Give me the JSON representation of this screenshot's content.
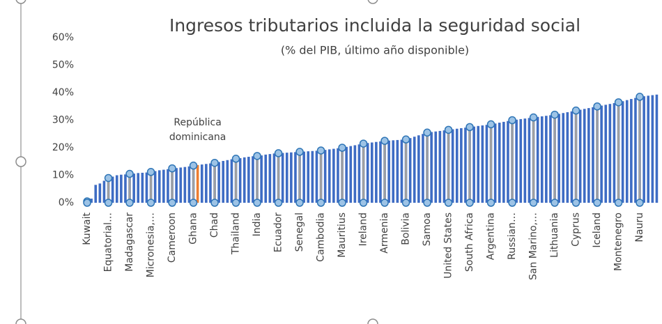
{
  "chart_data": {
    "type": "bar",
    "title": "Ingresos tributarios incluida la seguridad social",
    "subtitle": "(% del PIB, último año disponible)",
    "categories": [
      "Kuwait",
      null,
      null,
      null,
      null,
      "Equatorial…",
      null,
      null,
      null,
      null,
      "Madagascar",
      null,
      null,
      null,
      null,
      "Micronesia,…",
      null,
      null,
      null,
      null,
      "Cameroon",
      null,
      null,
      null,
      null,
      "Ghana",
      null,
      null,
      null,
      null,
      "Chad",
      null,
      null,
      null,
      null,
      "Thailand",
      null,
      null,
      null,
      null,
      "India",
      null,
      null,
      null,
      null,
      "Ecuador",
      null,
      null,
      null,
      null,
      "Senegal",
      null,
      null,
      null,
      null,
      "Cambodia",
      null,
      null,
      null,
      null,
      "Mauritius",
      null,
      null,
      null,
      null,
      "Ireland",
      null,
      null,
      null,
      null,
      "Armenia",
      null,
      null,
      null,
      null,
      "Bolivia",
      null,
      null,
      null,
      null,
      "Samoa",
      null,
      null,
      null,
      null,
      "United States",
      null,
      null,
      null,
      null,
      "South Africa",
      null,
      null,
      null,
      null,
      "Argentina",
      null,
      null,
      null,
      null,
      "Russian…",
      null,
      null,
      null,
      null,
      "San Marino,…",
      null,
      null,
      null,
      null,
      "Lithuania",
      null,
      null,
      null,
      null,
      "Cyprus",
      null,
      null,
      null,
      null,
      "Iceland",
      null,
      null,
      null,
      null,
      "Montenegro",
      null,
      null,
      null,
      null,
      "Nauru",
      null,
      null,
      null,
      null
    ],
    "values": [
      0.5,
      1.5,
      6.5,
      7,
      8,
      9,
      9.5,
      10,
      10.2,
      10.3,
      10.5,
      10.6,
      10.8,
      10.9,
      11,
      11.2,
      11.5,
      11.8,
      12,
      12.2,
      12.5,
      12.6,
      12.8,
      13,
      13.2,
      13.5,
      13.7,
      13.9,
      14.1,
      14.3,
      14.5,
      14.8,
      15.2,
      15.5,
      15.8,
      16,
      16.2,
      16.5,
      16.7,
      16.9,
      17,
      17.2,
      17.5,
      17.7,
      17.9,
      18,
      18.1,
      18.2,
      18.3,
      18.4,
      18.5,
      18.6,
      18.7,
      18.8,
      18.9,
      19,
      19.2,
      19.4,
      19.6,
      19.8,
      20,
      20.3,
      20.6,
      20.9,
      21.2,
      21.5,
      21.7,
      21.9,
      22.1,
      22.3,
      22.5,
      22.6,
      22.7,
      22.8,
      22.9,
      23,
      23.5,
      24,
      24.5,
      25,
      25.5,
      25.7,
      25.9,
      26.1,
      26.3,
      26.5,
      26.7,
      26.9,
      27.1,
      27.3,
      27.5,
      27.7,
      27.9,
      28.1,
      28.3,
      28.5,
      28.8,
      29.1,
      29.4,
      29.7,
      30,
      30.2,
      30.4,
      30.6,
      30.8,
      31,
      31.2,
      31.4,
      31.6,
      31.8,
      32,
      32.3,
      32.6,
      32.9,
      33.2,
      33.5,
      33.8,
      34.1,
      34.4,
      34.7,
      35,
      35.3,
      35.6,
      35.9,
      36.2,
      36.5,
      36.9,
      37.3,
      37.7,
      38.1,
      38.5,
      38.7,
      38.9,
      39.1,
      39.3
    ],
    "color": "#3e6cc4",
    "annotation": {
      "text": "República dominicana",
      "index": 26,
      "color": "#ed7d31"
    },
    "ylim": [
      0,
      60
    ],
    "yticks": [
      {
        "value": 0,
        "label": "0%"
      },
      {
        "value": 10,
        "label": "10%"
      },
      {
        "value": 20,
        "label": "20%"
      },
      {
        "value": 30,
        "label": "30%"
      },
      {
        "value": 40,
        "label": "40%"
      },
      {
        "value": 50,
        "label": "50%"
      },
      {
        "value": 60,
        "label": "60%"
      }
    ]
  }
}
